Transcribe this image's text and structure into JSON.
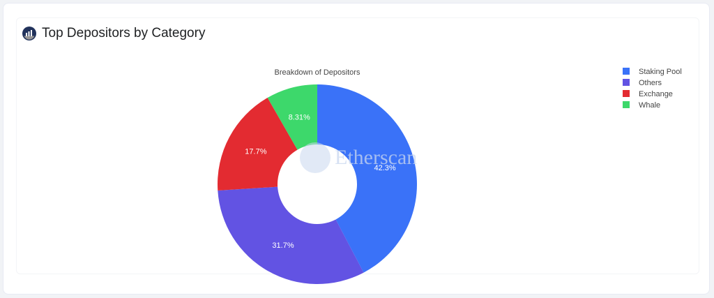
{
  "card": {
    "title": "Top Depositors by Category",
    "logo_icon": "etherscan-logo-icon"
  },
  "watermark_text": "Etherscan",
  "chart_data": {
    "type": "pie",
    "variant": "donut",
    "title": "Breakdown of Depositors",
    "categories": [
      "Staking Pool",
      "Others",
      "Exchange",
      "Whale"
    ],
    "values": [
      42.3,
      31.7,
      17.7,
      8.31
    ],
    "labels": [
      "42.3%",
      "31.7%",
      "17.7%",
      "8.31%"
    ],
    "colors": [
      "#3a72f8",
      "#6253e3",
      "#e32b31",
      "#3dd86b"
    ],
    "legend_position": "top-right",
    "direction": "clockwise"
  }
}
